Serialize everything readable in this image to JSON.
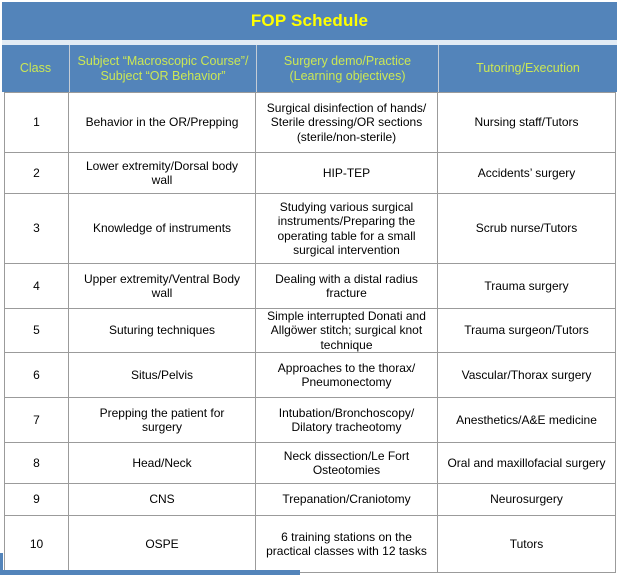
{
  "title": "FOP Schedule",
  "colors": {
    "header_bg": "#5384BA",
    "title_text": "#FFFF00",
    "header_text": "#CBE755",
    "body_text": "#000000",
    "border": "#9B9B9B",
    "header_divider": "#C4CCD6",
    "gap_line": "#E2EBF4"
  },
  "table": {
    "columns": [
      "Class",
      "Subject “Macroscopic Course”/\nSubject “OR Behavior”",
      "Surgery demo/Practice\n(Learning objectives)",
      "Tutoring/Execution"
    ],
    "rows": [
      {
        "class": "1",
        "subject": "Behavior in the OR/Prepping",
        "practice": "Surgical disinfection of hands/\nSterile dressing/OR sections\n(sterile/non-sterile)",
        "tutoring": "Nursing staff/Tutors"
      },
      {
        "class": "2",
        "subject": "Lower extremity/Dorsal body\nwall",
        "practice": "HIP-TEP",
        "tutoring": "Accidents’ surgery"
      },
      {
        "class": "3",
        "subject": "Knowledge of instruments",
        "practice": "Studying various surgical\ninstruments/Preparing the\noperating table for a small\nsurgical intervention",
        "tutoring": "Scrub nurse/Tutors"
      },
      {
        "class": "4",
        "subject": "Upper extremity/Ventral Body\nwall",
        "practice": "Dealing with a distal radius\nfracture",
        "tutoring": "Trauma surgery"
      },
      {
        "class": "5",
        "subject": "Suturing techniques",
        "practice": "Simple interrupted Donati and\nAllgöwer stitch; surgical knot\ntechnique",
        "tutoring": "Trauma surgeon/Tutors"
      },
      {
        "class": "6",
        "subject": "Situs/Pelvis",
        "practice": "Approaches to the thorax/\nPneumonectomy",
        "tutoring": "Vascular/Thorax surgery"
      },
      {
        "class": "7",
        "subject": "Prepping the patient for\nsurgery",
        "practice": "Intubation/Bronchoscopy/\nDilatory tracheotomy",
        "tutoring": "Anesthetics/A&E medicine"
      },
      {
        "class": "8",
        "subject": "Head/Neck",
        "practice": "Neck dissection/Le Fort\nOsteotomies",
        "tutoring": "Oral and maxillofacial surgery"
      },
      {
        "class": "9",
        "subject": "CNS",
        "practice": "Trepanation/Craniotomy",
        "tutoring": "Neurosurgery"
      },
      {
        "class": "10",
        "subject": "OSPE",
        "practice": "6 training stations on the\npractical classes with 12 tasks",
        "tutoring": "Tutors"
      }
    ]
  }
}
